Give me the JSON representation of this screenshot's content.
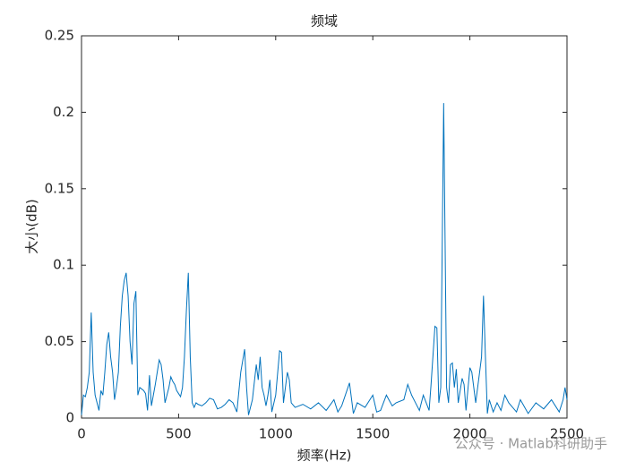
{
  "chart_data": {
    "type": "line",
    "title": "频域",
    "xlabel": "频率(Hz)",
    "ylabel": "大小(dB)",
    "watermark": "公众号 · Matlab科研助手",
    "xlim": [
      0,
      2500
    ],
    "ylim": [
      0,
      0.25
    ],
    "xticks": [
      0,
      500,
      1000,
      1500,
      2000,
      2500
    ],
    "yticks": [
      0,
      0.05,
      0.1,
      0.15,
      0.2,
      0.25
    ],
    "color": "#0072BD",
    "x": [
      0,
      10,
      20,
      30,
      40,
      50,
      60,
      70,
      80,
      90,
      100,
      110,
      120,
      130,
      140,
      150,
      160,
      170,
      180,
      190,
      200,
      210,
      220,
      230,
      240,
      250,
      260,
      270,
      280,
      290,
      300,
      310,
      320,
      330,
      340,
      350,
      360,
      370,
      380,
      390,
      400,
      410,
      420,
      430,
      440,
      450,
      460,
      470,
      480,
      490,
      500,
      510,
      520,
      530,
      540,
      550,
      560,
      570,
      580,
      590,
      600,
      620,
      640,
      660,
      680,
      700,
      720,
      740,
      760,
      780,
      800,
      820,
      840,
      850,
      860,
      880,
      900,
      910,
      920,
      930,
      940,
      950,
      960,
      970,
      980,
      1000,
      1020,
      1030,
      1040,
      1060,
      1070,
      1080,
      1100,
      1140,
      1180,
      1220,
      1260,
      1300,
      1320,
      1340,
      1380,
      1400,
      1420,
      1460,
      1500,
      1520,
      1540,
      1570,
      1600,
      1620,
      1660,
      1680,
      1700,
      1720,
      1740,
      1760,
      1790,
      1800,
      1820,
      1830,
      1840,
      1850,
      1865,
      1880,
      1890,
      1900,
      1910,
      1920,
      1930,
      1940,
      1960,
      1970,
      1980,
      2000,
      2010,
      2030,
      2060,
      2070,
      2080,
      2090,
      2100,
      2120,
      2140,
      2160,
      2180,
      2200,
      2240,
      2260,
      2300,
      2340,
      2380,
      2420,
      2460,
      2480,
      2490,
      2500
    ],
    "values": [
      0.002,
      0.015,
      0.014,
      0.02,
      0.03,
      0.069,
      0.03,
      0.015,
      0.01,
      0.005,
      0.018,
      0.015,
      0.03,
      0.048,
      0.056,
      0.04,
      0.03,
      0.012,
      0.02,
      0.03,
      0.06,
      0.08,
      0.09,
      0.095,
      0.08,
      0.05,
      0.035,
      0.075,
      0.083,
      0.015,
      0.02,
      0.019,
      0.018,
      0.016,
      0.005,
      0.028,
      0.008,
      0.015,
      0.022,
      0.03,
      0.038,
      0.035,
      0.025,
      0.01,
      0.015,
      0.02,
      0.027,
      0.024,
      0.022,
      0.018,
      0.016,
      0.014,
      0.02,
      0.04,
      0.07,
      0.095,
      0.04,
      0.01,
      0.007,
      0.01,
      0.009,
      0.008,
      0.01,
      0.013,
      0.012,
      0.006,
      0.007,
      0.009,
      0.012,
      0.01,
      0.004,
      0.03,
      0.045,
      0.02,
      0.002,
      0.012,
      0.035,
      0.025,
      0.04,
      0.02,
      0.015,
      0.008,
      0.015,
      0.025,
      0.004,
      0.015,
      0.044,
      0.043,
      0.01,
      0.03,
      0.025,
      0.01,
      0.007,
      0.009,
      0.006,
      0.01,
      0.005,
      0.012,
      0.004,
      0.008,
      0.023,
      0.003,
      0.01,
      0.007,
      0.015,
      0.004,
      0.005,
      0.015,
      0.008,
      0.01,
      0.012,
      0.022,
      0.015,
      0.01,
      0.005,
      0.015,
      0.005,
      0.022,
      0.06,
      0.059,
      0.01,
      0.02,
      0.206,
      0.02,
      0.01,
      0.035,
      0.036,
      0.02,
      0.032,
      0.01,
      0.026,
      0.022,
      0.005,
      0.033,
      0.03,
      0.01,
      0.04,
      0.08,
      0.04,
      0.003,
      0.012,
      0.004,
      0.01,
      0.005,
      0.015,
      0.01,
      0.004,
      0.012,
      0.003,
      0.01,
      0.006,
      0.012,
      0.004,
      0.012,
      0.02,
      0.012
    ]
  }
}
